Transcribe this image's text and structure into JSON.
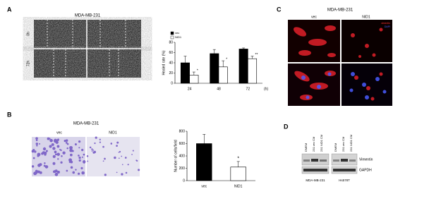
{
  "panels": {
    "a": {
      "letter": "A",
      "title": "MDA-MB-231",
      "rows": [
        "0h",
        "72h"
      ]
    },
    "b": {
      "letter": "B",
      "title": "MDA-MB-231",
      "cols": [
        "vec",
        "NID1"
      ]
    },
    "c": {
      "letter": "C",
      "title": "MDA-MB-231",
      "cols": [
        "vec",
        "NID1"
      ],
      "stains": [
        "vimentin",
        "DAPI"
      ]
    },
    "d": {
      "letter": "D",
      "lanes": [
        "DMEM",
        "231 vec CM",
        "231 NID1 CM",
        "DMEM",
        "231 vec CM",
        "231 NID1 CM"
      ],
      "bands": [
        "Vimentin",
        "GAPDH"
      ],
      "cells": [
        "MDA-MB-231",
        "Hs578T"
      ]
    }
  },
  "chart_data": [
    {
      "type": "bar",
      "ylabel": "Healed rate (%)",
      "xlabel": "(h)",
      "categories": [
        "24",
        "48",
        "72"
      ],
      "series": [
        {
          "name": "vec",
          "color": "#000000",
          "values": [
            40,
            58,
            67
          ],
          "errors": [
            13,
            8,
            2
          ]
        },
        {
          "name": "NID1",
          "color": "#ffffff",
          "values": [
            16,
            32,
            48
          ],
          "errors": [
            6,
            12,
            5
          ]
        }
      ],
      "annotations": [
        "*",
        "*",
        "**"
      ],
      "ylim": [
        0,
        80
      ],
      "yticks": [
        0,
        20,
        40,
        60,
        80
      ],
      "legend": "top-left"
    },
    {
      "type": "bar",
      "ylabel": "Number of cells/field",
      "categories": [
        "vec",
        "NID1"
      ],
      "values": [
        600,
        220
      ],
      "errors": [
        150,
        90
      ],
      "colors": [
        "#000000",
        "#ffffff"
      ],
      "annotations": [
        "",
        "*"
      ],
      "ylim": [
        0,
        800
      ],
      "yticks": [
        0,
        200,
        400,
        600,
        800
      ]
    }
  ]
}
